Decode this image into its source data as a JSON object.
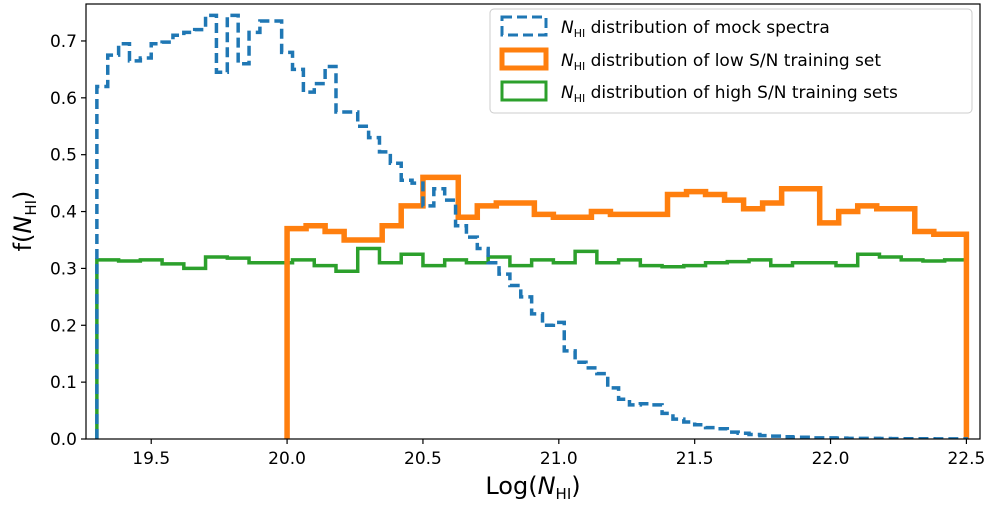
{
  "chart_data": {
    "type": "histogram",
    "xlim": [
      19.26,
      22.55
    ],
    "ylim": [
      0.0,
      0.765
    ],
    "x_ticks": [
      19.5,
      20.0,
      20.5,
      21.0,
      21.5,
      22.0,
      22.5
    ],
    "x_tick_labels": [
      "19.5",
      "20.0",
      "20.5",
      "21.0",
      "21.5",
      "22.0",
      "22.5"
    ],
    "y_ticks": [
      0.0,
      0.1,
      0.2,
      0.3,
      0.4,
      0.5,
      0.6,
      0.7
    ],
    "y_tick_labels": [
      "0.0",
      "0.1",
      "0.2",
      "0.3",
      "0.4",
      "0.5",
      "0.6",
      "0.7"
    ],
    "xlabel": {
      "prefix": "Log(",
      "var": "N",
      "sub": "HI",
      "suffix": ")"
    },
    "ylabel": {
      "prefix": "f(",
      "var": "N",
      "sub": "HI",
      "suffix": ")"
    },
    "legend_position": "top-right",
    "grid": false,
    "series": [
      {
        "name": {
          "var": "N",
          "sub": "HI",
          "text": " distribution of mock spectra"
        },
        "color": "#1f77b4",
        "linestyle": "dashed",
        "bin_edges": [
          19.3,
          19.34,
          19.38,
          19.42,
          19.46,
          19.5,
          19.54,
          19.58,
          19.62,
          19.66,
          19.7,
          19.74,
          19.78,
          19.82,
          19.86,
          19.9,
          19.94,
          19.98,
          20.02,
          20.06,
          20.1,
          20.14,
          20.18,
          20.22,
          20.26,
          20.3,
          20.34,
          20.38,
          20.42,
          20.46,
          20.5,
          20.54,
          20.58,
          20.62,
          20.66,
          20.7,
          20.74,
          20.78,
          20.82,
          20.86,
          20.9,
          20.94,
          20.98,
          21.02,
          21.06,
          21.1,
          21.14,
          21.18,
          21.22,
          21.26,
          21.3,
          21.34,
          21.38,
          21.42,
          21.46,
          21.5,
          21.54,
          21.58,
          21.62,
          21.66,
          21.7,
          21.74,
          21.78,
          21.82,
          21.86,
          21.9,
          21.94,
          21.98,
          22.02,
          22.06,
          22.1,
          22.14,
          22.18,
          22.22,
          22.26,
          22.3,
          22.34,
          22.38,
          22.42,
          22.46,
          22.5
        ],
        "values": [
          0.62,
          0.675,
          0.695,
          0.665,
          0.67,
          0.695,
          0.698,
          0.71,
          0.715,
          0.72,
          0.745,
          0.645,
          0.745,
          0.66,
          0.715,
          0.735,
          0.735,
          0.68,
          0.65,
          0.61,
          0.625,
          0.655,
          0.575,
          0.575,
          0.55,
          0.53,
          0.505,
          0.485,
          0.455,
          0.45,
          0.41,
          0.44,
          0.42,
          0.375,
          0.355,
          0.335,
          0.31,
          0.29,
          0.27,
          0.25,
          0.22,
          0.2,
          0.205,
          0.155,
          0.135,
          0.125,
          0.115,
          0.09,
          0.07,
          0.06,
          0.062,
          0.06,
          0.045,
          0.035,
          0.03,
          0.025,
          0.02,
          0.018,
          0.012,
          0.01,
          0.008,
          0.006,
          0.005,
          0.004,
          0.003,
          0.003,
          0.002,
          0.002,
          0.0015,
          0.001,
          0.001,
          0.001,
          0.0008,
          0.0006,
          0.0005,
          0.0005,
          0.0004,
          0.0003,
          0.0003,
          0.0002
        ]
      },
      {
        "name": {
          "var": "N",
          "sub": "HI",
          "text": " distribution of low S/N training set"
        },
        "color": "#ff7f0e",
        "linestyle": "solid",
        "bin_edges": [
          20.0,
          20.07,
          20.14,
          20.21,
          20.28,
          20.35,
          20.42,
          20.5,
          20.56,
          20.63,
          20.7,
          20.77,
          20.84,
          20.91,
          20.98,
          21.05,
          21.12,
          21.19,
          21.26,
          21.33,
          21.4,
          21.47,
          21.54,
          21.61,
          21.68,
          21.75,
          21.82,
          21.89,
          21.96,
          22.03,
          22.1,
          22.17,
          22.24,
          22.31,
          22.38,
          22.45,
          22.5
        ],
        "values": [
          0.37,
          0.375,
          0.365,
          0.35,
          0.35,
          0.375,
          0.41,
          0.46,
          0.46,
          0.39,
          0.41,
          0.415,
          0.415,
          0.395,
          0.39,
          0.39,
          0.4,
          0.395,
          0.395,
          0.395,
          0.43,
          0.435,
          0.43,
          0.42,
          0.405,
          0.415,
          0.44,
          0.44,
          0.38,
          0.4,
          0.41,
          0.405,
          0.405,
          0.365,
          0.36,
          0.36
        ]
      },
      {
        "name": {
          "var": "N",
          "sub": "HI",
          "text": " distribution of high S/N training sets"
        },
        "color": "#2ca02c",
        "linestyle": "solid",
        "bin_edges": [
          19.3,
          19.38,
          19.46,
          19.54,
          19.62,
          19.7,
          19.78,
          19.86,
          19.94,
          20.02,
          20.1,
          20.18,
          20.26,
          20.34,
          20.42,
          20.5,
          20.58,
          20.66,
          20.74,
          20.82,
          20.9,
          20.98,
          21.06,
          21.14,
          21.22,
          21.3,
          21.38,
          21.46,
          21.54,
          21.62,
          21.7,
          21.78,
          21.86,
          21.94,
          22.02,
          22.1,
          22.18,
          22.26,
          22.34,
          22.42,
          22.5
        ],
        "values": [
          0.315,
          0.313,
          0.315,
          0.308,
          0.3,
          0.32,
          0.318,
          0.31,
          0.31,
          0.315,
          0.305,
          0.295,
          0.335,
          0.31,
          0.325,
          0.305,
          0.315,
          0.31,
          0.32,
          0.305,
          0.315,
          0.31,
          0.33,
          0.31,
          0.315,
          0.305,
          0.303,
          0.305,
          0.31,
          0.312,
          0.315,
          0.305,
          0.31,
          0.31,
          0.305,
          0.325,
          0.32,
          0.315,
          0.313,
          0.315
        ]
      }
    ]
  }
}
